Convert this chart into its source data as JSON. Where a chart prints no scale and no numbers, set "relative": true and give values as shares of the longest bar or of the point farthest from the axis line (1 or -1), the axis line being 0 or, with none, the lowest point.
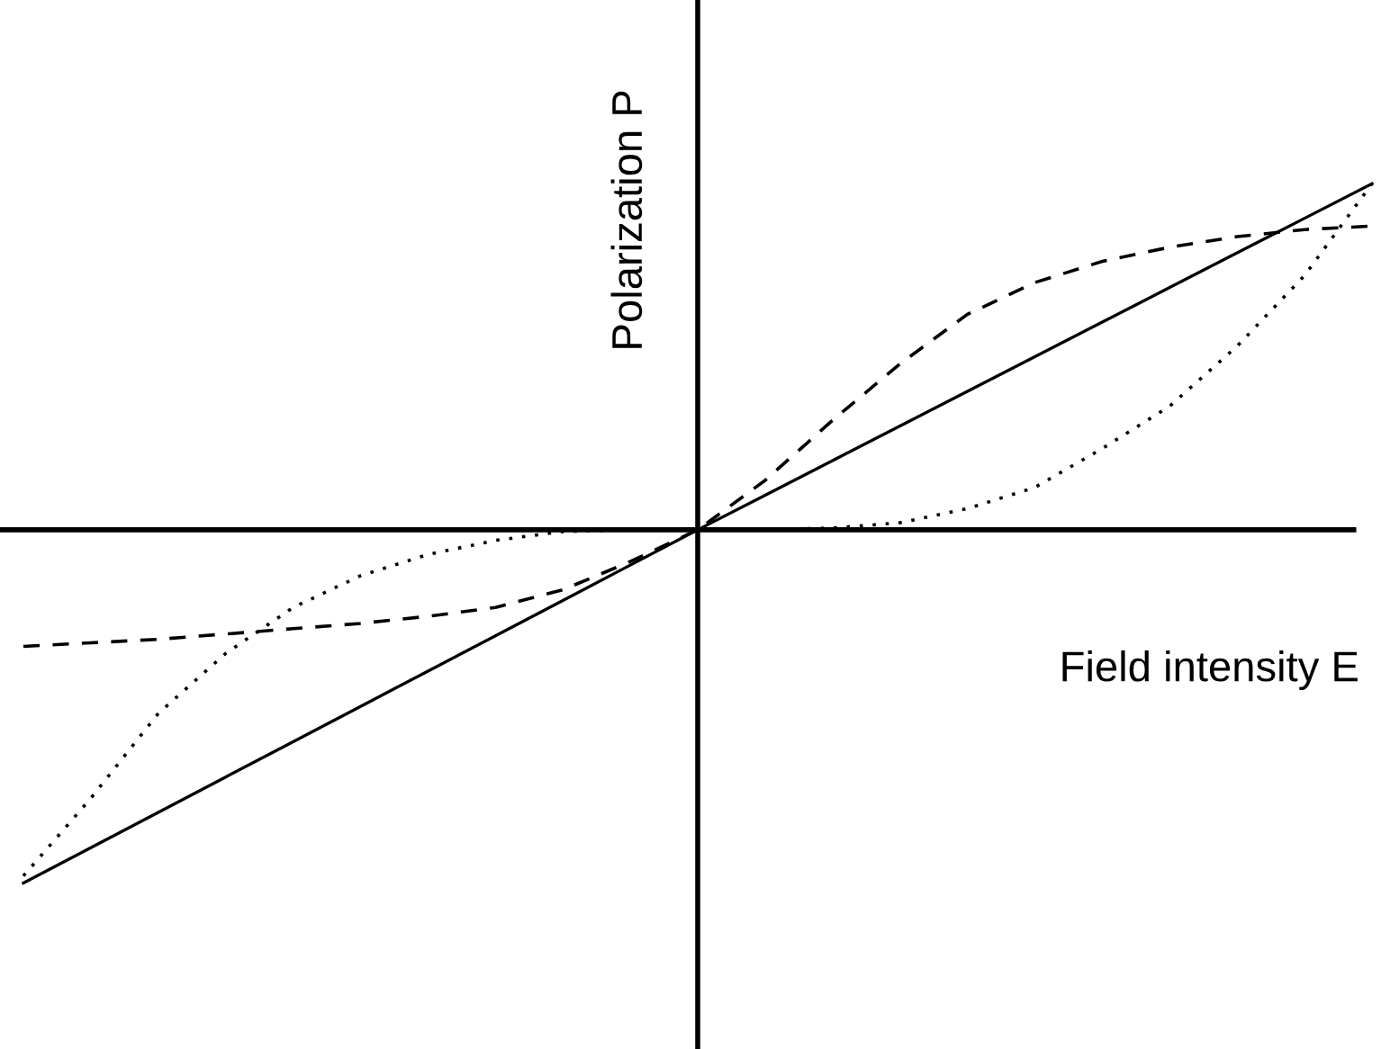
{
  "chart_data": {
    "type": "line",
    "relative": true,
    "xlabel": "Field intensity E",
    "ylabel": "Polarization P",
    "categories": [
      null,
      null,
      null,
      null,
      null,
      null,
      null,
      null,
      null,
      null,
      null,
      null,
      null,
      null,
      null,
      null,
      null,
      null,
      null,
      null,
      null
    ],
    "series": [
      {
        "color": "#000000",
        "line_style": "solid",
        "values": [
          -1.0,
          -0.9,
          -0.8,
          -0.7,
          -0.6,
          -0.5,
          -0.4,
          -0.3,
          -0.2,
          -0.1,
          0,
          0.098,
          0.196,
          0.294,
          0.392,
          0.49,
          0.588,
          0.686,
          0.784,
          0.882,
          0.98
        ]
      },
      {
        "color": "#000000",
        "line_style": "dashed",
        "values": [
          -0.33,
          -0.32,
          -0.31,
          -0.295,
          -0.28,
          -0.265,
          -0.245,
          -0.22,
          -0.17,
          -0.09,
          0,
          0.14,
          0.31,
          0.47,
          0.61,
          0.7,
          0.76,
          0.8,
          0.83,
          0.85,
          0.86
        ]
      },
      {
        "color": "#000000",
        "line_style": "dotted",
        "values": [
          -0.98,
          -0.76,
          -0.52,
          -0.35,
          -0.22,
          -0.13,
          -0.07,
          -0.03,
          -0.005,
          0,
          0,
          0,
          0.005,
          0.02,
          0.06,
          0.12,
          0.23,
          0.35,
          0.52,
          0.72,
          0.98
        ]
      }
    ]
  }
}
